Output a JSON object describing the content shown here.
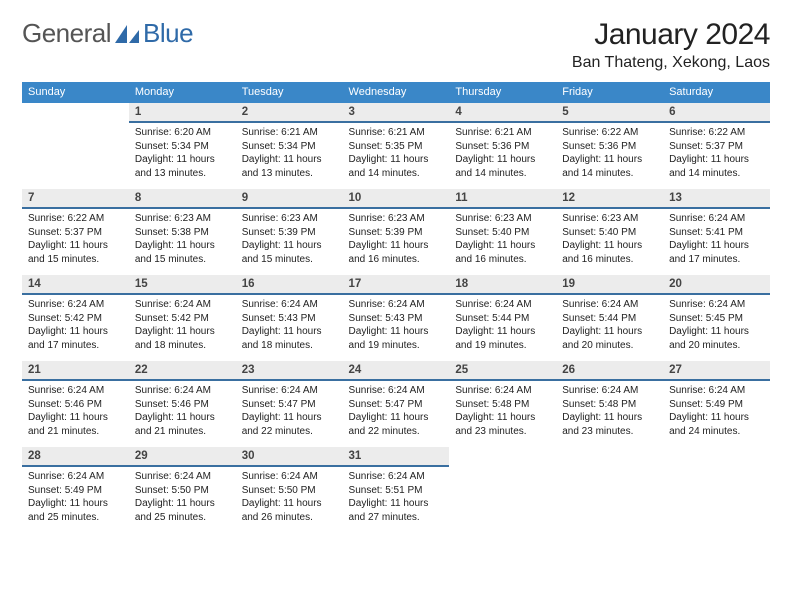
{
  "brand": {
    "word1": "General",
    "word2": "Blue"
  },
  "title": "January 2024",
  "location": "Ban Thateng, Xekong, Laos",
  "colors": {
    "header_bg": "#3a87c8",
    "header_text": "#ffffff",
    "daynum_bg": "#ececec",
    "daynum_border": "#3a6fa0",
    "text": "#222222",
    "brand_gray": "#555555",
    "brand_blue": "#2f6aa8"
  },
  "weekdays": [
    "Sunday",
    "Monday",
    "Tuesday",
    "Wednesday",
    "Thursday",
    "Friday",
    "Saturday"
  ],
  "start_offset": 1,
  "days": [
    {
      "n": 1,
      "sr": "6:20 AM",
      "ss": "5:34 PM",
      "dh": 11,
      "dm": 13
    },
    {
      "n": 2,
      "sr": "6:21 AM",
      "ss": "5:34 PM",
      "dh": 11,
      "dm": 13
    },
    {
      "n": 3,
      "sr": "6:21 AM",
      "ss": "5:35 PM",
      "dh": 11,
      "dm": 14
    },
    {
      "n": 4,
      "sr": "6:21 AM",
      "ss": "5:36 PM",
      "dh": 11,
      "dm": 14
    },
    {
      "n": 5,
      "sr": "6:22 AM",
      "ss": "5:36 PM",
      "dh": 11,
      "dm": 14
    },
    {
      "n": 6,
      "sr": "6:22 AM",
      "ss": "5:37 PM",
      "dh": 11,
      "dm": 14
    },
    {
      "n": 7,
      "sr": "6:22 AM",
      "ss": "5:37 PM",
      "dh": 11,
      "dm": 15
    },
    {
      "n": 8,
      "sr": "6:23 AM",
      "ss": "5:38 PM",
      "dh": 11,
      "dm": 15
    },
    {
      "n": 9,
      "sr": "6:23 AM",
      "ss": "5:39 PM",
      "dh": 11,
      "dm": 15
    },
    {
      "n": 10,
      "sr": "6:23 AM",
      "ss": "5:39 PM",
      "dh": 11,
      "dm": 16
    },
    {
      "n": 11,
      "sr": "6:23 AM",
      "ss": "5:40 PM",
      "dh": 11,
      "dm": 16
    },
    {
      "n": 12,
      "sr": "6:23 AM",
      "ss": "5:40 PM",
      "dh": 11,
      "dm": 16
    },
    {
      "n": 13,
      "sr": "6:24 AM",
      "ss": "5:41 PM",
      "dh": 11,
      "dm": 17
    },
    {
      "n": 14,
      "sr": "6:24 AM",
      "ss": "5:42 PM",
      "dh": 11,
      "dm": 17
    },
    {
      "n": 15,
      "sr": "6:24 AM",
      "ss": "5:42 PM",
      "dh": 11,
      "dm": 18
    },
    {
      "n": 16,
      "sr": "6:24 AM",
      "ss": "5:43 PM",
      "dh": 11,
      "dm": 18
    },
    {
      "n": 17,
      "sr": "6:24 AM",
      "ss": "5:43 PM",
      "dh": 11,
      "dm": 19
    },
    {
      "n": 18,
      "sr": "6:24 AM",
      "ss": "5:44 PM",
      "dh": 11,
      "dm": 19
    },
    {
      "n": 19,
      "sr": "6:24 AM",
      "ss": "5:44 PM",
      "dh": 11,
      "dm": 20
    },
    {
      "n": 20,
      "sr": "6:24 AM",
      "ss": "5:45 PM",
      "dh": 11,
      "dm": 20
    },
    {
      "n": 21,
      "sr": "6:24 AM",
      "ss": "5:46 PM",
      "dh": 11,
      "dm": 21
    },
    {
      "n": 22,
      "sr": "6:24 AM",
      "ss": "5:46 PM",
      "dh": 11,
      "dm": 21
    },
    {
      "n": 23,
      "sr": "6:24 AM",
      "ss": "5:47 PM",
      "dh": 11,
      "dm": 22
    },
    {
      "n": 24,
      "sr": "6:24 AM",
      "ss": "5:47 PM",
      "dh": 11,
      "dm": 22
    },
    {
      "n": 25,
      "sr": "6:24 AM",
      "ss": "5:48 PM",
      "dh": 11,
      "dm": 23
    },
    {
      "n": 26,
      "sr": "6:24 AM",
      "ss": "5:48 PM",
      "dh": 11,
      "dm": 23
    },
    {
      "n": 27,
      "sr": "6:24 AM",
      "ss": "5:49 PM",
      "dh": 11,
      "dm": 24
    },
    {
      "n": 28,
      "sr": "6:24 AM",
      "ss": "5:49 PM",
      "dh": 11,
      "dm": 25
    },
    {
      "n": 29,
      "sr": "6:24 AM",
      "ss": "5:50 PM",
      "dh": 11,
      "dm": 25
    },
    {
      "n": 30,
      "sr": "6:24 AM",
      "ss": "5:50 PM",
      "dh": 11,
      "dm": 26
    },
    {
      "n": 31,
      "sr": "6:24 AM",
      "ss": "5:51 PM",
      "dh": 11,
      "dm": 27
    }
  ],
  "labels": {
    "sunrise": "Sunrise:",
    "sunset": "Sunset:",
    "daylight": "Daylight:",
    "hours": "hours",
    "and": "and",
    "minutes": "minutes."
  }
}
